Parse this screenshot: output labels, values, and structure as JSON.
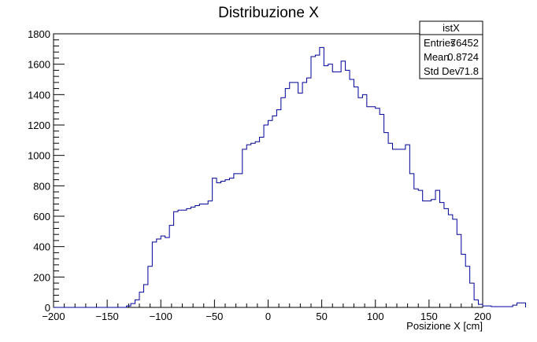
{
  "chart_data": {
    "type": "bar",
    "title": "Distribuzione X",
    "xlabel": "Posizione X [cm]",
    "ylabel": "",
    "xlim": [
      -200,
      200
    ],
    "ylim": [
      0,
      1800
    ],
    "x_ticks": [
      -200,
      -150,
      -100,
      -50,
      0,
      50,
      100,
      150,
      200
    ],
    "y_ticks": [
      0,
      200,
      400,
      600,
      800,
      1000,
      1200,
      1400,
      1600,
      1800
    ],
    "bin_width": 4,
    "bin_start": -200,
    "line_color": "#000099",
    "values": [
      0,
      0,
      0,
      0,
      0,
      0,
      0,
      0,
      0,
      0,
      0,
      0,
      0,
      0,
      0,
      0,
      0,
      10,
      25,
      50,
      100,
      150,
      270,
      430,
      450,
      470,
      460,
      540,
      630,
      640,
      640,
      650,
      660,
      670,
      680,
      680,
      700,
      850,
      820,
      830,
      840,
      850,
      880,
      880,
      1040,
      1070,
      1080,
      1090,
      1120,
      1200,
      1230,
      1260,
      1300,
      1380,
      1440,
      1480,
      1480,
      1410,
      1480,
      1510,
      1650,
      1660,
      1710,
      1590,
      1600,
      1550,
      1550,
      1620,
      1560,
      1500,
      1450,
      1380,
      1400,
      1320,
      1320,
      1310,
      1270,
      1150,
      1080,
      1040,
      1040,
      1040,
      1070,
      880,
      780,
      770,
      700,
      700,
      710,
      770,
      690,
      650,
      610,
      580,
      480,
      350,
      270,
      160,
      50,
      20,
      10,
      10,
      5,
      5,
      5,
      5,
      5,
      15,
      30,
      30
    ]
  },
  "stats_box": {
    "name": "istX",
    "rows": [
      {
        "label": "Entries",
        "value": "76452"
      },
      {
        "label": "Mean",
        "value": "0.8724"
      },
      {
        "label": "Std Dev",
        "value": "71.8"
      }
    ]
  }
}
